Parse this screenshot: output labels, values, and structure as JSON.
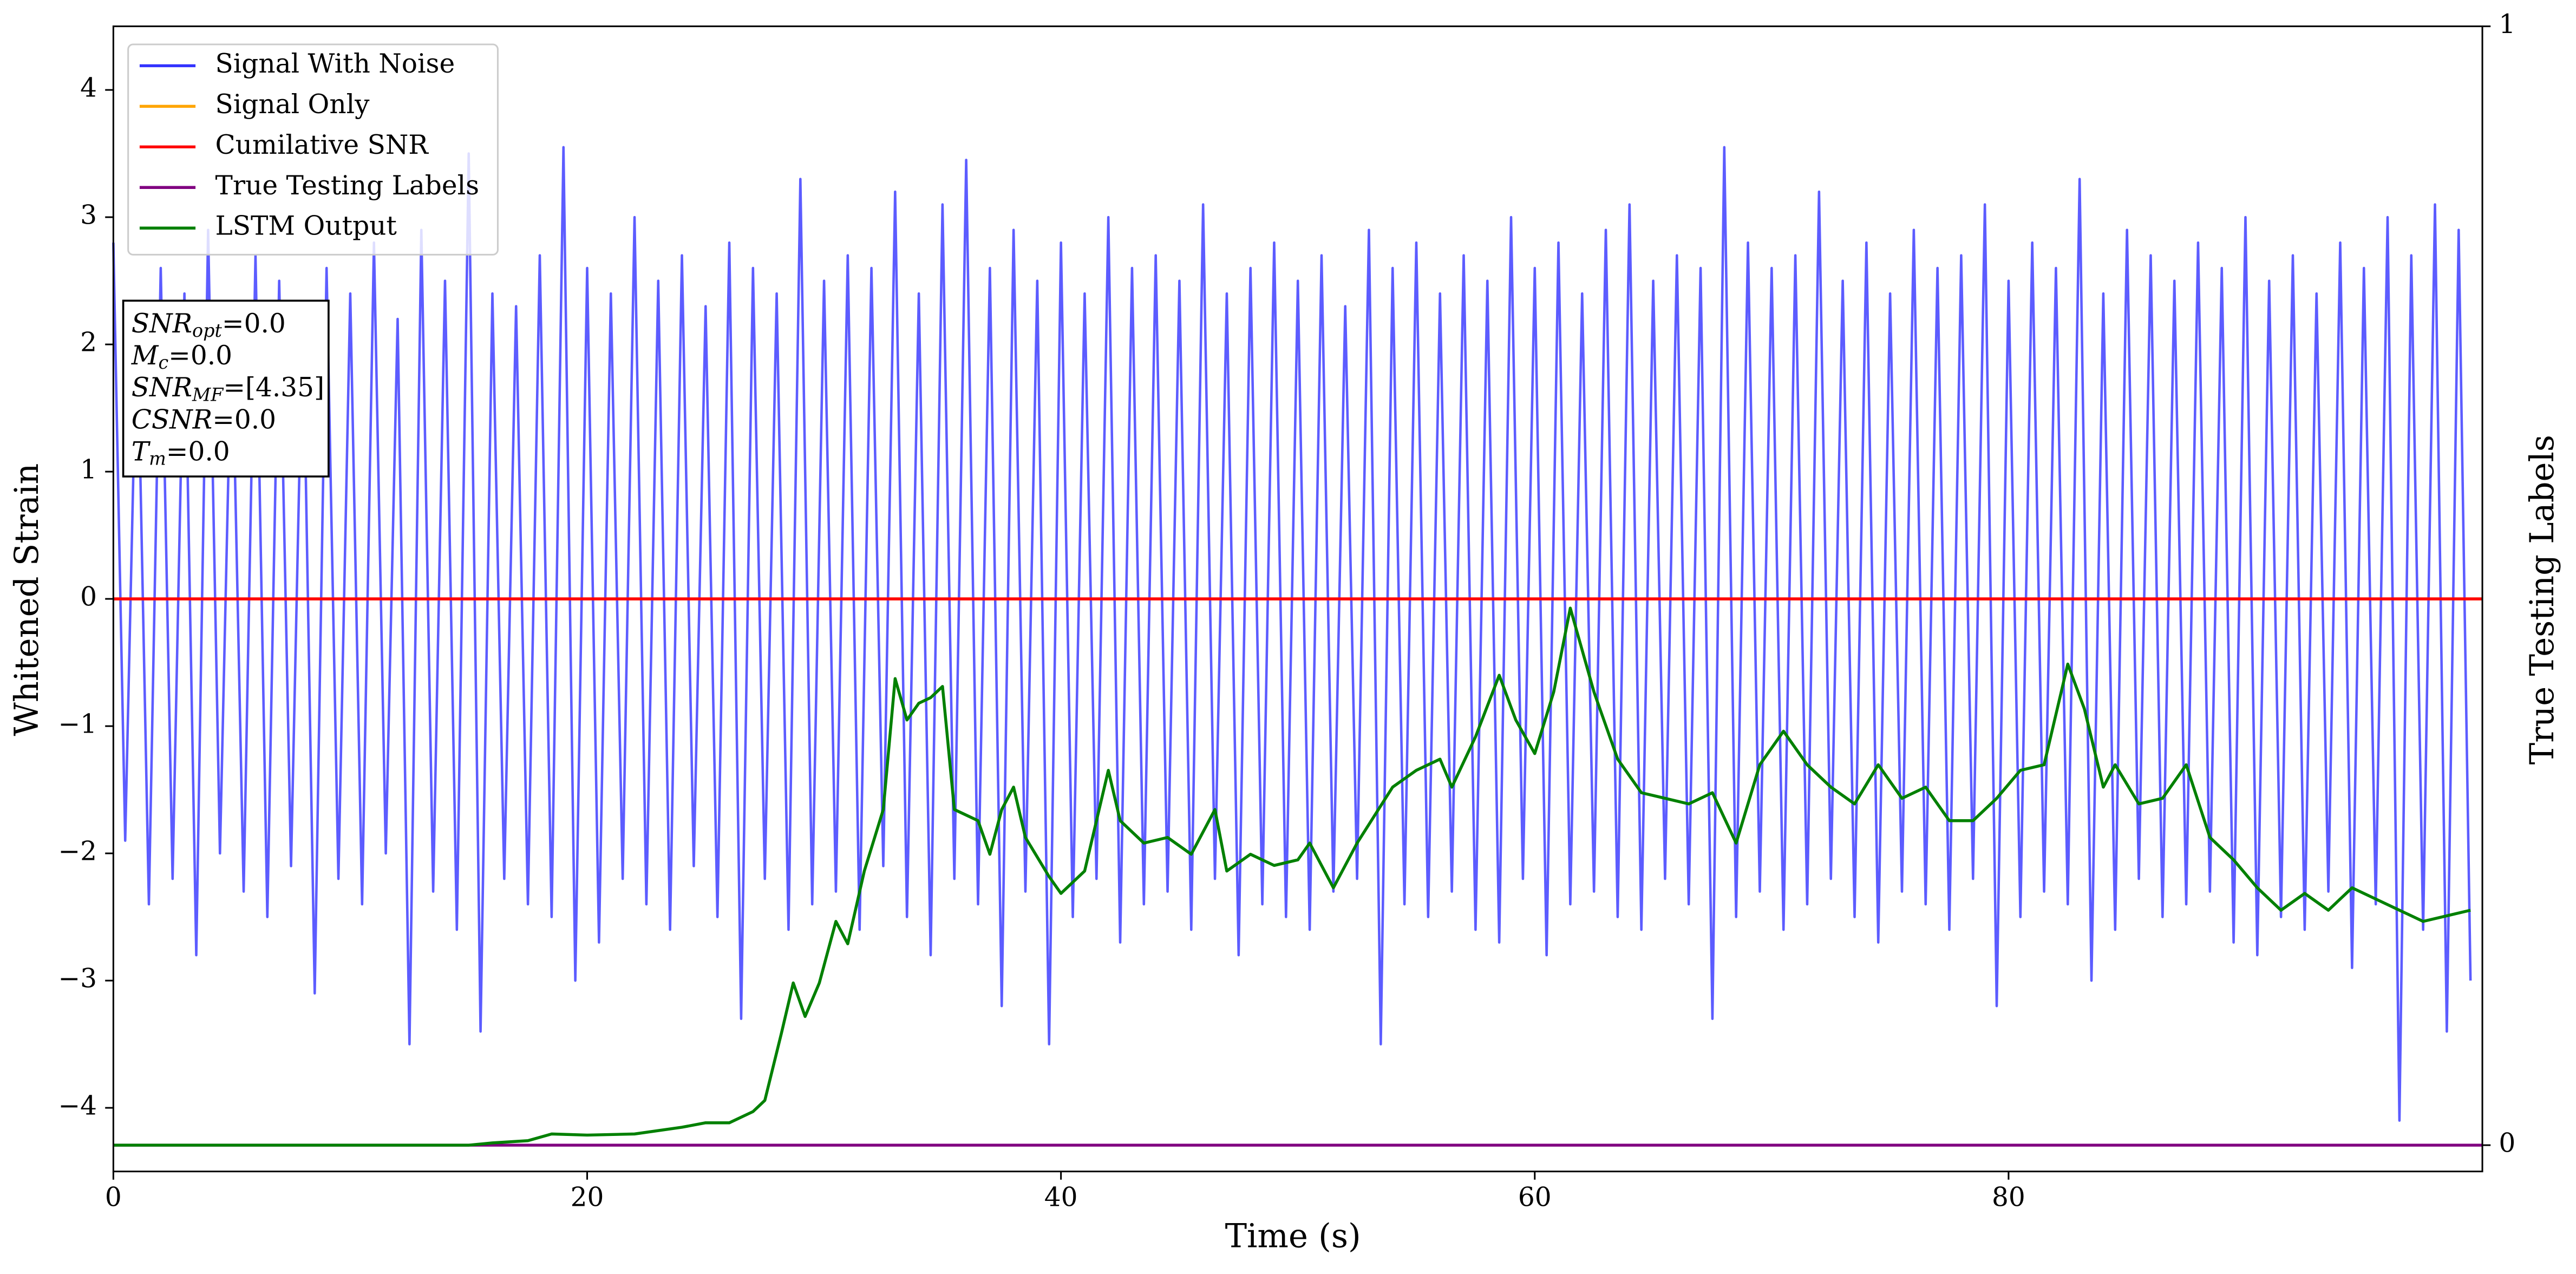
{
  "chart_data": {
    "type": "line",
    "x_label": "Time (s)",
    "y_label": "Whitened Strain",
    "y2_label": "True Testing Labels",
    "xlim": [
      0,
      100
    ],
    "xticks": [
      0,
      20,
      40,
      60,
      80
    ],
    "ylim": [
      -4.5,
      4.5
    ],
    "yticks": [
      {
        "value": -4,
        "label": "−4"
      },
      {
        "value": -3,
        "label": "−3"
      },
      {
        "value": -2,
        "label": "−2"
      },
      {
        "value": -1,
        "label": "−1"
      },
      0,
      1,
      2,
      3,
      4
    ],
    "y2lim": [
      -0.0235,
      1
    ],
    "y2ticks": [
      0,
      1
    ],
    "legend": "upper left",
    "series": [
      {
        "name": "Signal With Noise",
        "color": "#3333ff",
        "axis": "y",
        "x": [
          0,
          0.5,
          1,
          1.5,
          2,
          2.5,
          3,
          3.5,
          4,
          4.5,
          5,
          5.5,
          6,
          6.5,
          7,
          7.5,
          8,
          8.5,
          9,
          9.5,
          10,
          10.5,
          11,
          11.5,
          12,
          12.5,
          13,
          13.5,
          14,
          14.5,
          15,
          15.5,
          16,
          16.5,
          17,
          17.5,
          18,
          18.5,
          19,
          19.5,
          20,
          20.5,
          21,
          21.5,
          22,
          22.5,
          23,
          23.5,
          24,
          24.5,
          25,
          25.5,
          26,
          26.5,
          27,
          27.5,
          28,
          28.5,
          29,
          29.5,
          30,
          30.5,
          31,
          31.5,
          32,
          32.5,
          33,
          33.5,
          34,
          34.5,
          35,
          35.5,
          36,
          36.5,
          37,
          37.5,
          38,
          38.5,
          39,
          39.5,
          40,
          40.5,
          41,
          41.5,
          42,
          42.5,
          43,
          43.5,
          44,
          44.5,
          45,
          45.5,
          46,
          46.5,
          47,
          47.5,
          48,
          48.5,
          49,
          49.5,
          50,
          50.5,
          51,
          51.5,
          52,
          52.5,
          53,
          53.5,
          54,
          54.5,
          55,
          55.5,
          56,
          56.5,
          57,
          57.5,
          58,
          58.5,
          59,
          59.5,
          60,
          60.5,
          61,
          61.5,
          62,
          62.5,
          63,
          63.5,
          64,
          64.5,
          65,
          65.5,
          66,
          66.5,
          67,
          67.5,
          68,
          68.5,
          69,
          69.5,
          70,
          70.5,
          71,
          71.5,
          72,
          72.5,
          73,
          73.5,
          74,
          74.5,
          75,
          75.5,
          76,
          76.5,
          77,
          77.5,
          78,
          78.5,
          79,
          79.5,
          80,
          80.5,
          81,
          81.5,
          82,
          82.5,
          83,
          83.5,
          84,
          84.5,
          85,
          85.5,
          86,
          86.5,
          87,
          87.5,
          88,
          88.5,
          89,
          89.5,
          90,
          90.5,
          91,
          91.5,
          92,
          92.5,
          93,
          93.5,
          94,
          94.5,
          95,
          95.5,
          96,
          96.5,
          97,
          97.5,
          98,
          98.5,
          99,
          99.5
        ],
        "values": [
          2.8,
          -1.9,
          2.3,
          -2.4,
          2.6,
          -2.2,
          2.4,
          -2.8,
          2.9,
          -2.0,
          2.2,
          -2.3,
          2.7,
          -2.5,
          2.5,
          -2.1,
          2.3,
          -3.1,
          2.6,
          -2.2,
          2.4,
          -2.4,
          2.8,
          -2.0,
          2.2,
          -3.5,
          2.9,
          -2.3,
          2.5,
          -2.6,
          3.5,
          -3.4,
          2.4,
          -2.2,
          2.3,
          -2.4,
          2.7,
          -2.5,
          3.55,
          -3.0,
          2.6,
          -2.7,
          2.4,
          -2.2,
          3.0,
          -2.4,
          2.5,
          -2.6,
          2.7,
          -2.1,
          2.3,
          -2.5,
          2.8,
          -3.3,
          2.6,
          -2.2,
          2.4,
          -2.6,
          3.3,
          -2.4,
          2.5,
          -2.3,
          2.7,
          -2.6,
          2.6,
          -2.1,
          3.2,
          -2.5,
          2.4,
          -2.8,
          3.1,
          -2.2,
          3.45,
          -2.4,
          2.6,
          -3.2,
          2.9,
          -2.3,
          2.5,
          -3.5,
          2.8,
          -2.5,
          2.4,
          -2.2,
          3.0,
          -2.7,
          2.6,
          -2.4,
          2.7,
          -2.3,
          2.5,
          -2.6,
          3.1,
          -2.2,
          2.4,
          -2.8,
          2.6,
          -2.4,
          2.8,
          -2.5,
          2.5,
          -2.6,
          2.7,
          -2.3,
          2.3,
          -2.2,
          2.9,
          -3.5,
          2.6,
          -2.4,
          2.8,
          -2.5,
          2.4,
          -2.3,
          2.7,
          -2.6,
          2.5,
          -2.7,
          3.0,
          -2.2,
          2.6,
          -2.8,
          2.8,
          -2.4,
          2.4,
          -2.3,
          2.9,
          -2.5,
          3.1,
          -2.6,
          2.5,
          -2.2,
          2.7,
          -2.4,
          2.6,
          -3.3,
          3.55,
          -2.5,
          2.8,
          -2.3,
          2.6,
          -2.6,
          2.7,
          -2.4,
          3.2,
          -2.2,
          2.5,
          -2.5,
          2.8,
          -2.7,
          2.4,
          -2.3,
          2.9,
          -2.4,
          2.6,
          -2.6,
          2.7,
          -2.2,
          3.1,
          -3.2,
          2.5,
          -2.5,
          2.8,
          -2.3,
          2.6,
          -2.4,
          3.3,
          -3.0,
          2.4,
          -2.6,
          2.9,
          -2.2,
          2.7,
          -2.5,
          2.5,
          -2.4,
          2.8,
          -2.3,
          2.6,
          -2.7,
          3.0,
          -2.8,
          2.5,
          -2.5,
          2.7,
          -2.6,
          2.4,
          -2.3,
          2.8,
          -2.9,
          2.6,
          -2.4,
          3.0,
          -4.1,
          2.7,
          -2.6,
          3.1,
          -3.4,
          2.9,
          -3.0
        ]
      },
      {
        "name": "Signal Only",
        "color": "#ffa500",
        "axis": "y",
        "x": [
          0,
          100
        ],
        "values": [
          0,
          0
        ]
      },
      {
        "name": "Cumilative SNR",
        "color": "#ff0000",
        "axis": "y",
        "x": [
          0,
          100
        ],
        "values": [
          0,
          0
        ]
      },
      {
        "name": "True Testing Labels",
        "color": "#800080",
        "axis": "y2",
        "x": [
          0,
          100
        ],
        "values": [
          0,
          0
        ]
      },
      {
        "name": "LSTM Output",
        "color": "#008000",
        "axis": "y2",
        "x": [
          0,
          15,
          16,
          17.5,
          18.5,
          20,
          22,
          24,
          25,
          26,
          27,
          27.5,
          28.2,
          28.7,
          29.2,
          29.8,
          30.5,
          31,
          31.7,
          32.5,
          33,
          33.5,
          34,
          34.5,
          35,
          35.5,
          36.5,
          37,
          37.5,
          38,
          38.5,
          39.5,
          40,
          41,
          42,
          42.5,
          43.5,
          44.5,
          45.5,
          46.5,
          47,
          48,
          49,
          50,
          50.5,
          51.5,
          52.5,
          54,
          55,
          56,
          56.5,
          57.5,
          58.5,
          59.2,
          60,
          60.8,
          61.5,
          62.5,
          63.5,
          64.5,
          65.5,
          66.5,
          67.5,
          68.5,
          69.5,
          70.5,
          71.5,
          72.5,
          73.5,
          74.5,
          75.5,
          76.5,
          77.5,
          78.5,
          79.5,
          80.5,
          81.5,
          82.5,
          83.2,
          84,
          84.5,
          85.5,
          86.5,
          87.5,
          88.5,
          89.5,
          90.5,
          91.5,
          92.5,
          93.5,
          94.5,
          95.5,
          96.5,
          97.5,
          98.5,
          99.5
        ],
        "values": [
          0,
          0,
          0.002,
          0.004,
          0.01,
          0.009,
          0.01,
          0.016,
          0.02,
          0.02,
          0.03,
          0.04,
          0.1,
          0.145,
          0.115,
          0.145,
          0.2,
          0.18,
          0.245,
          0.3,
          0.417,
          0.38,
          0.395,
          0.4,
          0.41,
          0.3,
          0.29,
          0.26,
          0.3,
          0.32,
          0.275,
          0.24,
          0.225,
          0.245,
          0.335,
          0.29,
          0.27,
          0.275,
          0.26,
          0.3,
          0.245,
          0.26,
          0.25,
          0.255,
          0.27,
          0.23,
          0.27,
          0.32,
          0.335,
          0.345,
          0.32,
          0.365,
          0.42,
          0.38,
          0.35,
          0.405,
          0.48,
          0.405,
          0.345,
          0.315,
          0.31,
          0.305,
          0.315,
          0.27,
          0.34,
          0.37,
          0.34,
          0.32,
          0.305,
          0.34,
          0.31,
          0.32,
          0.29,
          0.29,
          0.31,
          0.335,
          0.34,
          0.43,
          0.39,
          0.32,
          0.34,
          0.305,
          0.31,
          0.34,
          0.275,
          0.255,
          0.23,
          0.21,
          0.225,
          0.21,
          0.23,
          0.22,
          0.21,
          0.2,
          0.205,
          0.21
        ]
      }
    ],
    "annotation": [
      {
        "name": "SNR",
        "sub": "opt",
        "text": "=0.0"
      },
      {
        "name": "M",
        "sub": "c",
        "text": "=0.0"
      },
      {
        "name": "SNR",
        "sub": "MF",
        "text": "=[4.35]"
      },
      {
        "name": "CSNR",
        "text": "=0.0"
      },
      {
        "name": "T",
        "sub": "m",
        "text": "=0.0"
      }
    ]
  }
}
